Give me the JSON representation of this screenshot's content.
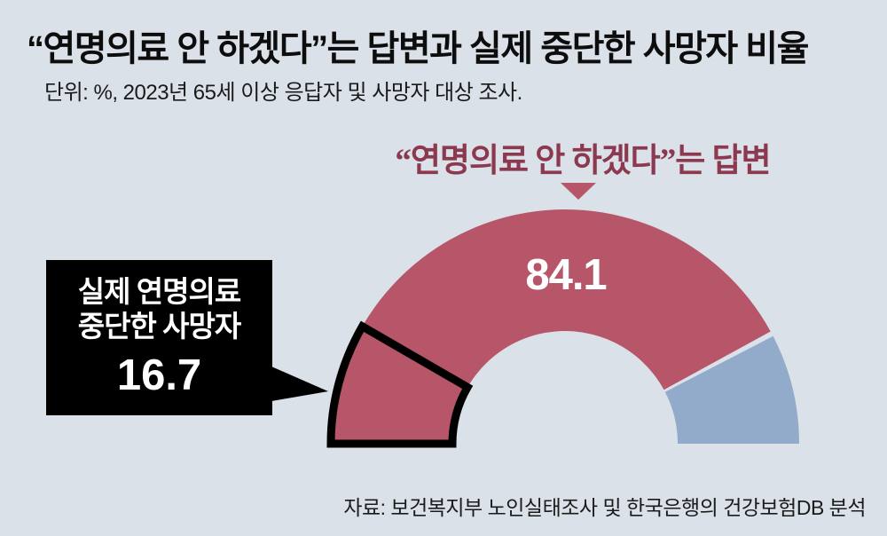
{
  "page": {
    "background": "#dbe1e8"
  },
  "header": {
    "title": "“연명의료 안 하겠다”는 답변과 실제 중단한 사망자 비율",
    "subtitle": "단위: %, 2023년 65세 이상 응답자 및 사망자 대상 조사."
  },
  "gauge_label": {
    "text": "“연명의료 안 하겠다”는 답변"
  },
  "callout": {
    "line1": "실제 연명의료",
    "line2": "중단한 사망자",
    "value": "16.7"
  },
  "footer": {
    "source": "자료: 보건복지부 노인실태조사 및 한국은행의 건강보험DB 분석"
  },
  "chart_data": {
    "type": "pie",
    "variant": "semicircle-donut-gauge",
    "unit": "%",
    "title": "“연명의료 안 하겠다”는 답변과 실제 중단한 사망자 비율",
    "angle_span_deg": 180,
    "total": 100,
    "segments": [
      {
        "label": "“연명의료 안 하겠다”는 답변",
        "value": 84.1,
        "value_label": "84.1",
        "color": "#b75569"
      },
      {
        "label": "",
        "value": 15.9,
        "value_label": "",
        "color": "#92abcb"
      }
    ],
    "overlay_sector": {
      "label": "실제 연명의료 중단한 사망자",
      "value": 16.7,
      "style": "black-outlined-sector",
      "outline_color": "#000000"
    },
    "colors": {
      "background": "#dbe1e8",
      "answer_red": "#b75569",
      "remainder_blue": "#92abcb",
      "label_maroon": "#8c394f",
      "value_text": "#ffffff",
      "callout_bg": "#000000"
    }
  }
}
